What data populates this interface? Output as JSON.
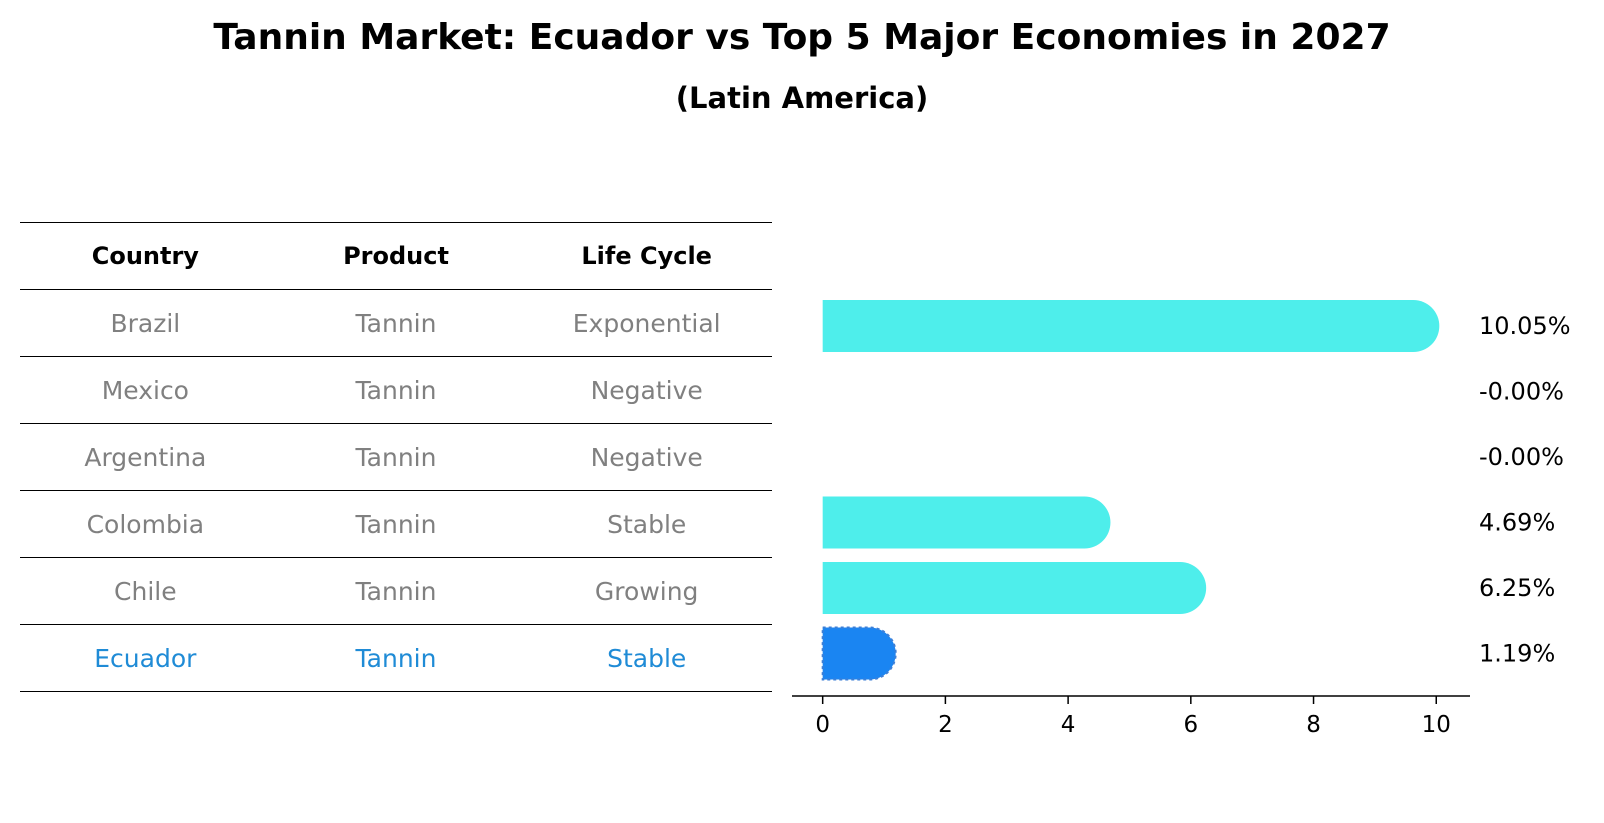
{
  "title": "Tannin Market: Ecuador vs Top 5 Major Economies in 2027",
  "subtitle": "(Latin America)",
  "table": {
    "headers": [
      "Country",
      "Product",
      "Life Cycle"
    ],
    "rows": [
      [
        "Brazil",
        "Tannin",
        "Exponential"
      ],
      [
        "Mexico",
        "Tannin",
        "Negative"
      ],
      [
        "Argentina",
        "Tannin",
        "Negative"
      ],
      [
        "Colombia",
        "Tannin",
        "Stable"
      ],
      [
        "Chile",
        "Tannin",
        "Growing"
      ],
      [
        "Ecuador",
        "Tannin",
        "Stable"
      ]
    ],
    "highlight_row": 5,
    "text_color": "#808080",
    "highlight_color": "#1f8bd6"
  },
  "chart_data": {
    "type": "bar",
    "orientation": "horizontal",
    "categories": [
      "Brazil",
      "Mexico",
      "Argentina",
      "Colombia",
      "Chile",
      "Ecuador"
    ],
    "values": [
      10.05,
      -0.0,
      -0.0,
      4.69,
      6.25,
      1.19
    ],
    "value_labels": [
      "10.05%",
      "-0.00%",
      "-0.00%",
      "4.69%",
      "6.25%",
      "1.19%"
    ],
    "xlim": [
      -0.5,
      10.55
    ],
    "xticks": [
      0,
      2,
      4,
      6,
      8,
      10
    ],
    "bar_color": "#4eeeeb",
    "highlight_color": "#1a85f2",
    "highlight_index": 5,
    "grid": false
  }
}
